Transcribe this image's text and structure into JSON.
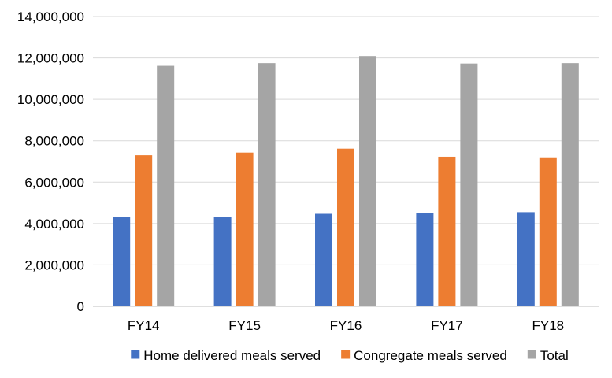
{
  "chart_data": {
    "type": "bar",
    "categories": [
      "FY14",
      "FY15",
      "FY16",
      "FY17",
      "FY18"
    ],
    "series": [
      {
        "name": "Home delivered meals served",
        "color": "#4472C4",
        "values": [
          4320000,
          4320000,
          4470000,
          4500000,
          4550000
        ]
      },
      {
        "name": "Congregate meals served",
        "color": "#ED7D31",
        "values": [
          7300000,
          7430000,
          7620000,
          7230000,
          7200000
        ]
      },
      {
        "name": "Total",
        "color": "#A5A5A5",
        "values": [
          11620000,
          11750000,
          12090000,
          11730000,
          11750000
        ]
      }
    ],
    "ylim": [
      0,
      14000000
    ],
    "yticks": [
      0,
      2000000,
      4000000,
      6000000,
      8000000,
      10000000,
      12000000,
      14000000
    ],
    "ytick_labels": [
      "0",
      "2,000,000",
      "4,000,000",
      "6,000,000",
      "8,000,000",
      "10,000,000",
      "12,000,000",
      "14,000,000"
    ],
    "grid": true,
    "gridline_color": "#D9D9D9",
    "legend_position": "bottom",
    "title": "",
    "xlabel": "",
    "ylabel": ""
  }
}
